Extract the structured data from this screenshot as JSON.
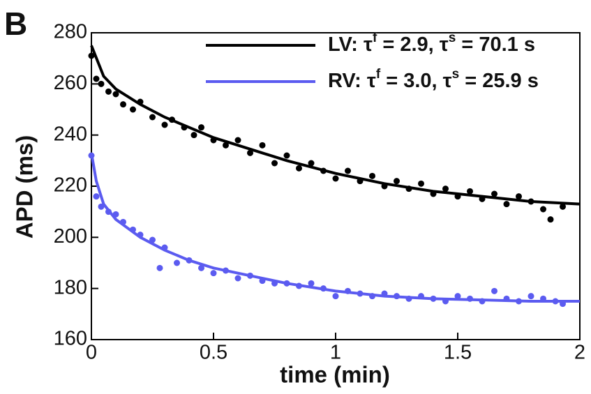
{
  "panel_label": "B",
  "chart_data": {
    "type": "scatter-fit",
    "xlabel": "time (min)",
    "ylabel": "APD (ms)",
    "xlim": [
      0,
      2
    ],
    "ylim": [
      160,
      280
    ],
    "xticks": [
      0,
      0.5,
      1,
      1.5,
      2
    ],
    "yticks": [
      160,
      180,
      200,
      220,
      240,
      260,
      280
    ],
    "legend": "upper right",
    "series": [
      {
        "name": "LV: τf = 2.9, τs = 70.1 s",
        "color": "#000000",
        "x": [
          0,
          0.05,
          0.1,
          0.2,
          0.3,
          0.4,
          0.5,
          0.6,
          0.8,
          1.0,
          1.2,
          1.4,
          1.6,
          1.8,
          2.0
        ],
        "values": [
          275,
          263,
          258,
          252,
          247,
          243,
          239,
          236,
          230,
          225,
          221,
          218,
          216,
          214,
          213
        ],
        "scatter_x": [
          0,
          0.02,
          0.04,
          0.07,
          0.1,
          0.13,
          0.17,
          0.2,
          0.25,
          0.3,
          0.33,
          0.38,
          0.42,
          0.45,
          0.5,
          0.55,
          0.6,
          0.65,
          0.7,
          0.75,
          0.8,
          0.85,
          0.9,
          0.95,
          1.0,
          1.05,
          1.1,
          1.15,
          1.2,
          1.25,
          1.3,
          1.35,
          1.4,
          1.45,
          1.5,
          1.55,
          1.6,
          1.65,
          1.7,
          1.75,
          1.8,
          1.85,
          1.88,
          1.93
        ],
        "scatter_values": [
          271,
          262,
          260,
          257,
          256,
          252,
          250,
          253,
          247,
          244,
          246,
          243,
          240,
          243,
          238,
          236,
          238,
          233,
          236,
          229,
          232,
          227,
          229,
          226,
          223,
          226,
          222,
          224,
          220,
          222,
          219,
          221,
          217,
          219,
          216,
          218,
          215,
          217,
          213,
          216,
          214,
          211,
          207,
          212
        ]
      },
      {
        "name": "RV: τf = 3.0, τs = 25.9 s",
        "color": "#5b5bf0",
        "x": [
          0,
          0.02,
          0.05,
          0.1,
          0.2,
          0.3,
          0.4,
          0.5,
          0.6,
          0.8,
          1.0,
          1.2,
          1.4,
          1.6,
          1.8,
          2.0
        ],
        "values": [
          233,
          222,
          213,
          207,
          200,
          195,
          191,
          188,
          186,
          182,
          179,
          177,
          176,
          175.5,
          175,
          175
        ],
        "scatter_x": [
          0,
          0.02,
          0.04,
          0.07,
          0.1,
          0.13,
          0.17,
          0.2,
          0.25,
          0.28,
          0.3,
          0.35,
          0.4,
          0.45,
          0.5,
          0.55,
          0.6,
          0.65,
          0.7,
          0.75,
          0.8,
          0.85,
          0.9,
          0.95,
          1.0,
          1.05,
          1.1,
          1.15,
          1.2,
          1.25,
          1.3,
          1.35,
          1.4,
          1.45,
          1.5,
          1.55,
          1.6,
          1.65,
          1.7,
          1.75,
          1.8,
          1.85,
          1.9,
          1.93
        ],
        "scatter_values": [
          232,
          216,
          212,
          210,
          209,
          206,
          203,
          201,
          199,
          188,
          196,
          190,
          191,
          188,
          186,
          187,
          184,
          185,
          183,
          182,
          182,
          181,
          182,
          180,
          177,
          179,
          178,
          177,
          178,
          177,
          176,
          177,
          176,
          175,
          177,
          176,
          175,
          179,
          176,
          175,
          177,
          176,
          175,
          174
        ]
      }
    ]
  }
}
